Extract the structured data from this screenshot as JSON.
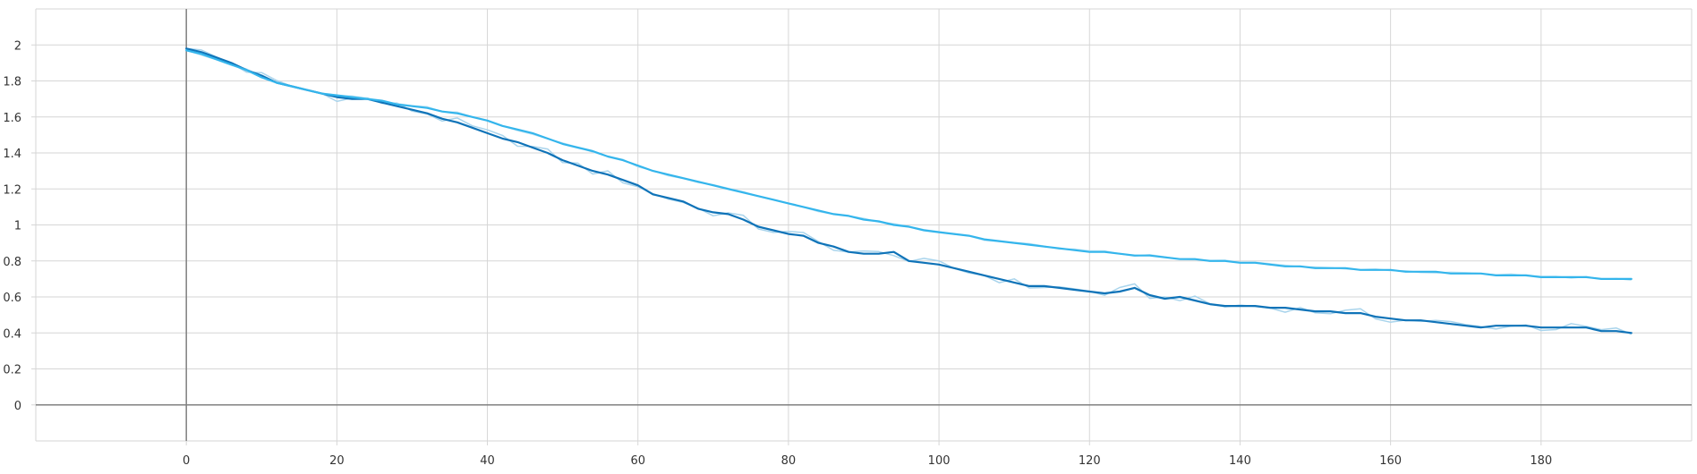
{
  "chart_data": {
    "type": "line",
    "title": "",
    "xlabel": "",
    "ylabel": "",
    "xlim": [
      -20,
      200
    ],
    "ylim": [
      -0.2,
      2.2
    ],
    "x_ticks": [
      0,
      20,
      40,
      60,
      80,
      100,
      120,
      140,
      160,
      180
    ],
    "y_ticks": [
      0,
      0.2,
      0.4,
      0.6,
      0.8,
      1,
      1.2,
      1.4,
      1.6,
      1.8,
      2
    ],
    "x_tick_labels": [
      "0",
      "20",
      "40",
      "60",
      "80",
      "100",
      "120",
      "140",
      "160",
      "180"
    ],
    "y_tick_labels": [
      "0",
      "0.2",
      "0.4",
      "0.6",
      "0.8",
      "1",
      "1.2",
      "1.4",
      "1.6",
      "1.8",
      "2"
    ],
    "grid": true,
    "colors": {
      "series_dark": "#0f73b8",
      "series_dark_raw": "#a9d4ec",
      "series_light": "#34b5ec",
      "series_light_raw": "#b9e3f5",
      "grid": "#d6d6d6",
      "axis": "#808080"
    },
    "series": [
      {
        "color_key": "series_dark",
        "x": [
          0,
          2,
          4,
          6,
          8,
          10,
          12,
          14,
          16,
          18,
          20,
          22,
          24,
          26,
          28,
          30,
          32,
          34,
          36,
          38,
          40,
          42,
          44,
          46,
          48,
          50,
          52,
          54,
          56,
          58,
          60,
          62,
          64,
          66,
          68,
          70,
          72,
          74,
          76,
          78,
          80,
          82,
          84,
          86,
          88,
          90,
          92,
          94,
          96,
          98,
          100,
          102,
          104,
          106,
          108,
          110,
          112,
          114,
          116,
          118,
          120,
          122,
          124,
          126,
          128,
          130,
          132,
          134,
          136,
          138,
          140,
          142,
          144,
          146,
          148,
          150,
          152,
          154,
          156,
          158,
          160,
          162,
          164,
          166,
          168,
          170,
          172,
          174,
          176,
          178,
          180,
          182,
          184,
          186,
          188,
          190,
          192
        ],
        "y": [
          1.98,
          1.96,
          1.93,
          1.9,
          1.86,
          1.83,
          1.79,
          1.77,
          1.75,
          1.73,
          1.71,
          1.7,
          1.7,
          1.68,
          1.66,
          1.64,
          1.62,
          1.59,
          1.57,
          1.54,
          1.51,
          1.48,
          1.46,
          1.43,
          1.4,
          1.36,
          1.33,
          1.3,
          1.28,
          1.25,
          1.22,
          1.17,
          1.15,
          1.13,
          1.09,
          1.07,
          1.06,
          1.03,
          0.99,
          0.97,
          0.95,
          0.94,
          0.9,
          0.88,
          0.85,
          0.84,
          0.84,
          0.85,
          0.8,
          0.79,
          0.78,
          0.76,
          0.74,
          0.72,
          0.7,
          0.68,
          0.66,
          0.66,
          0.65,
          0.64,
          0.63,
          0.62,
          0.63,
          0.65,
          0.61,
          0.59,
          0.6,
          0.58,
          0.56,
          0.55,
          0.55,
          0.55,
          0.54,
          0.54,
          0.53,
          0.52,
          0.52,
          0.51,
          0.51,
          0.49,
          0.48,
          0.47,
          0.47,
          0.46,
          0.45,
          0.44,
          0.43,
          0.44,
          0.44,
          0.44,
          0.43,
          0.43,
          0.43,
          0.43,
          0.41,
          0.41,
          0.4
        ]
      },
      {
        "color_key": "series_light",
        "x": [
          0,
          2,
          4,
          6,
          8,
          10,
          12,
          14,
          16,
          18,
          20,
          22,
          24,
          26,
          28,
          30,
          32,
          34,
          36,
          38,
          40,
          42,
          44,
          46,
          48,
          50,
          52,
          54,
          56,
          58,
          60,
          62,
          64,
          66,
          68,
          70,
          72,
          74,
          76,
          78,
          80,
          82,
          84,
          86,
          88,
          90,
          92,
          94,
          96,
          98,
          100,
          102,
          104,
          106,
          108,
          110,
          112,
          114,
          116,
          118,
          120,
          122,
          124,
          126,
          128,
          130,
          132,
          134,
          136,
          138,
          140,
          142,
          144,
          146,
          148,
          150,
          152,
          154,
          156,
          158,
          160,
          162,
          164,
          166,
          168,
          170,
          172,
          174,
          176,
          178,
          180,
          182,
          184,
          186,
          188,
          190,
          192
        ],
        "y": [
          1.97,
          1.95,
          1.92,
          1.89,
          1.86,
          1.82,
          1.79,
          1.77,
          1.75,
          1.73,
          1.72,
          1.71,
          1.7,
          1.69,
          1.67,
          1.66,
          1.65,
          1.63,
          1.62,
          1.6,
          1.58,
          1.55,
          1.53,
          1.51,
          1.48,
          1.45,
          1.43,
          1.41,
          1.38,
          1.36,
          1.33,
          1.3,
          1.28,
          1.26,
          1.24,
          1.22,
          1.2,
          1.18,
          1.16,
          1.14,
          1.12,
          1.1,
          1.08,
          1.06,
          1.05,
          1.03,
          1.02,
          1.0,
          0.99,
          0.97,
          0.96,
          0.95,
          0.94,
          0.92,
          0.91,
          0.9,
          0.89,
          0.88,
          0.87,
          0.86,
          0.85,
          0.85,
          0.84,
          0.83,
          0.83,
          0.82,
          0.81,
          0.81,
          0.8,
          0.8,
          0.79,
          0.79,
          0.78,
          0.77,
          0.77,
          0.76,
          0.76,
          0.76,
          0.75,
          0.75,
          0.75,
          0.74,
          0.74,
          0.74,
          0.73,
          0.73,
          0.73,
          0.72,
          0.72,
          0.72,
          0.71,
          0.71,
          0.71,
          0.71,
          0.7,
          0.7,
          0.7
        ]
      }
    ]
  }
}
